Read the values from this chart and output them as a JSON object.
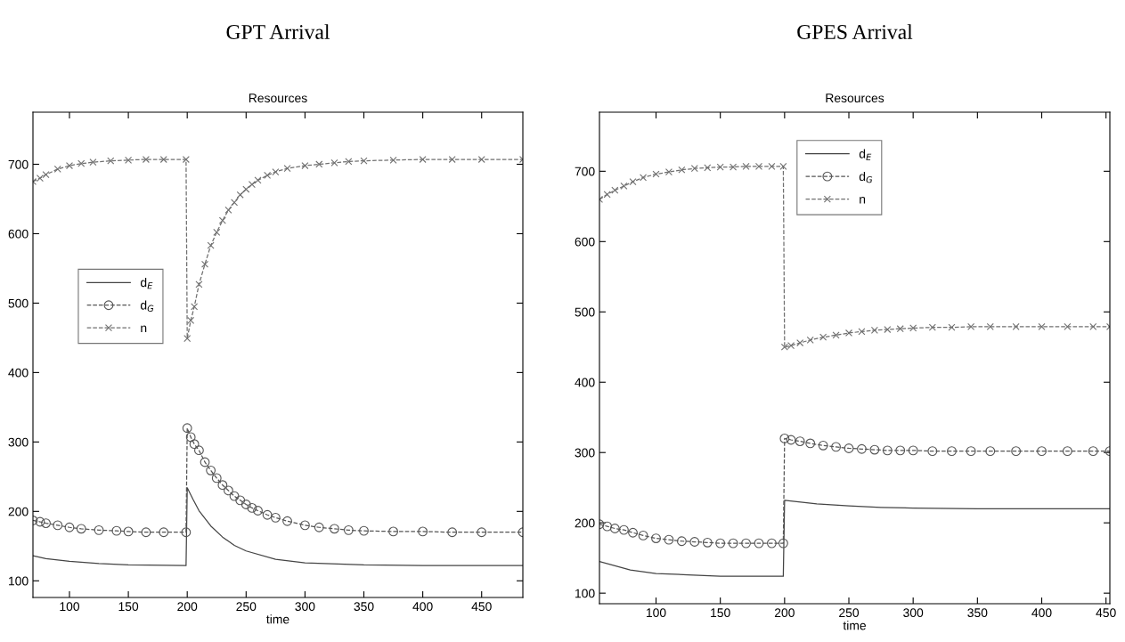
{
  "chart_data": [
    {
      "type": "line",
      "title": "GPT Arrival",
      "subtitle": "Resources",
      "xlabel": "time",
      "xlim": [
        69,
        485
      ],
      "ylim": [
        76,
        775
      ],
      "xticks": [
        100,
        150,
        200,
        250,
        300,
        350,
        400,
        450
      ],
      "yticks": [
        100,
        200,
        300,
        400,
        500,
        600,
        700
      ],
      "legend": "left",
      "grid": false,
      "series": [
        {
          "name": "d$_{E}$",
          "color": "#444444",
          "marker": "none",
          "line_style": "solid",
          "x": [
            69,
            80,
            100,
            125,
            150,
            199,
            200,
            205,
            210,
            220,
            230,
            240,
            250,
            275,
            300,
            350,
            400,
            485
          ],
          "values": [
            136,
            132,
            128,
            125,
            123,
            122,
            234,
            217,
            201,
            179,
            163,
            151,
            143,
            131,
            126,
            123,
            122,
            122
          ]
        },
        {
          "name": "d$_{G}$",
          "color": "#555555",
          "marker": "circle",
          "line_style": "dashed",
          "x": [
            69,
            75,
            80,
            90,
            100,
            110,
            125,
            140,
            150,
            165,
            180,
            199,
            200,
            203,
            206,
            210,
            215,
            220,
            225,
            230,
            235,
            240,
            245,
            250,
            255,
            260,
            268,
            275,
            285,
            300,
            312,
            325,
            337,
            350,
            375,
            400,
            425,
            450,
            485
          ],
          "values": [
            187,
            185,
            183,
            180,
            177,
            175,
            173,
            172,
            171,
            170,
            170,
            170,
            320,
            307,
            297,
            288,
            271,
            259,
            248,
            238,
            230,
            222,
            216,
            210,
            205,
            201,
            195,
            191,
            186,
            180,
            177,
            175,
            173,
            172,
            171,
            171,
            170,
            170,
            170
          ]
        },
        {
          "name": "n",
          "color": "#707070",
          "marker": "cross",
          "line_style": "dashed",
          "x": [
            69,
            75,
            80,
            90,
            100,
            110,
            120,
            135,
            150,
            165,
            180,
            199,
            200,
            203,
            206,
            210,
            215,
            220,
            225,
            230,
            235,
            240,
            245,
            250,
            255,
            260,
            268,
            275,
            285,
            300,
            312,
            325,
            337,
            350,
            375,
            400,
            425,
            450,
            485
          ],
          "values": [
            675,
            680,
            685,
            693,
            698,
            701,
            703,
            705,
            706,
            707,
            707,
            707,
            449,
            475,
            495,
            527,
            556,
            583,
            602,
            619,
            634,
            645,
            656,
            664,
            671,
            677,
            684,
            689,
            694,
            698,
            700,
            702,
            704,
            705,
            706,
            707,
            707,
            707,
            707
          ]
        }
      ]
    },
    {
      "type": "line",
      "title": "GPES Arrival",
      "subtitle": "Resources",
      "xlabel": "time",
      "xlim": [
        56,
        453
      ],
      "ylim": [
        85,
        784
      ],
      "xticks": [
        100,
        150,
        200,
        250,
        300,
        350,
        400,
        450
      ],
      "yticks": [
        100,
        200,
        300,
        400,
        500,
        600,
        700
      ],
      "legend": "top",
      "grid": false,
      "series": [
        {
          "name": "d$_{E}$",
          "color": "#444444",
          "marker": "none",
          "line_style": "solid",
          "x": [
            56,
            80,
            100,
            125,
            150,
            199,
            200,
            225,
            250,
            275,
            300,
            350,
            400,
            453
          ],
          "values": [
            145,
            133,
            128,
            126,
            124,
            124,
            232,
            227,
            224,
            222,
            221,
            220,
            220,
            220
          ]
        },
        {
          "name": "d$_{G}$",
          "color": "#555555",
          "marker": "circle",
          "line_style": "dashed",
          "x": [
            56,
            62,
            68,
            75,
            82,
            90,
            100,
            110,
            120,
            130,
            140,
            150,
            160,
            170,
            180,
            190,
            199,
            200,
            205,
            212,
            220,
            230,
            240,
            250,
            260,
            270,
            280,
            290,
            300,
            315,
            330,
            345,
            360,
            380,
            400,
            420,
            440,
            453
          ],
          "values": [
            198,
            195,
            192,
            190,
            186,
            182,
            178,
            176,
            174,
            173,
            172,
            171,
            171,
            171,
            171,
            171,
            171,
            320,
            318,
            316,
            313,
            310,
            308,
            306,
            305,
            304,
            303,
            303,
            303,
            302,
            302,
            302,
            302,
            302,
            302,
            302,
            302,
            302
          ]
        },
        {
          "name": "n",
          "color": "#707070",
          "marker": "cross",
          "line_style": "dashed",
          "x": [
            56,
            62,
            68,
            75,
            82,
            90,
            100,
            110,
            120,
            130,
            140,
            150,
            160,
            170,
            180,
            190,
            199,
            200,
            205,
            212,
            220,
            230,
            240,
            250,
            260,
            270,
            280,
            290,
            300,
            315,
            330,
            345,
            360,
            380,
            400,
            420,
            440,
            453
          ],
          "values": [
            660,
            667,
            673,
            679,
            685,
            691,
            696,
            699,
            702,
            704,
            705,
            706,
            706,
            707,
            707,
            707,
            707,
            450,
            452,
            456,
            460,
            464,
            467,
            470,
            472,
            474,
            475,
            476,
            477,
            478,
            478,
            479,
            479,
            479,
            479,
            479,
            479,
            479
          ]
        }
      ]
    }
  ]
}
